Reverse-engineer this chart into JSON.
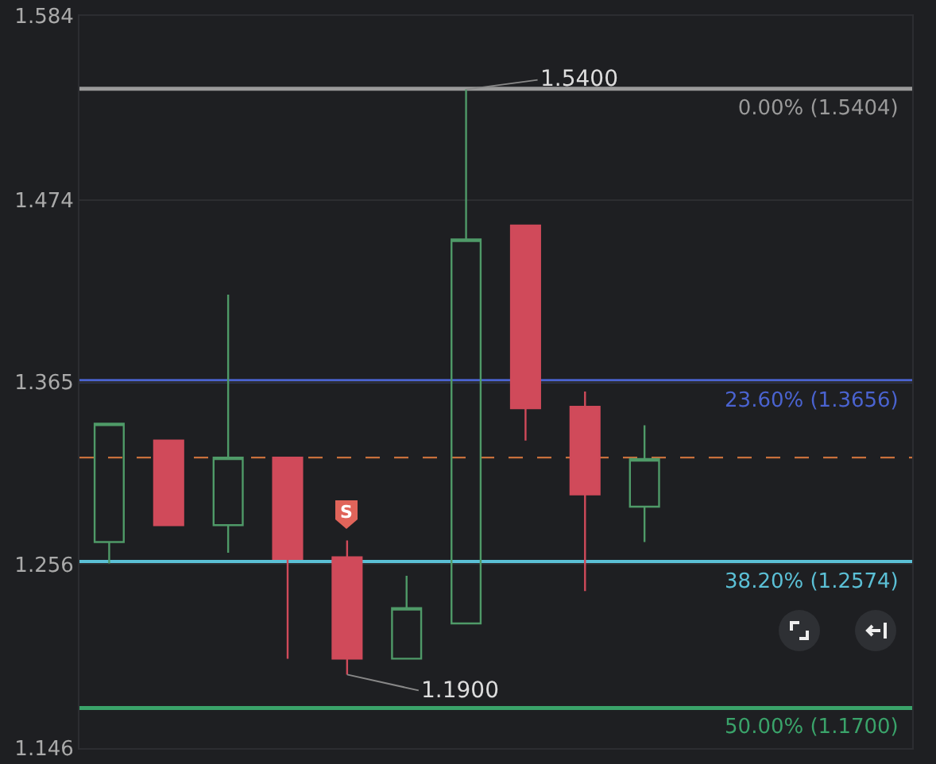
{
  "chart_data": {
    "type": "candlestick",
    "categories": [
      null,
      null,
      null,
      null,
      null,
      null,
      null,
      null,
      null,
      null
    ],
    "ohlc": [
      [
        1.2693,
        1.3401,
        1.2564,
        1.3401
      ],
      [
        1.33,
        1.33,
        1.2794,
        1.2794
      ],
      [
        1.2794,
        1.4173,
        1.2629,
        1.3198
      ],
      [
        1.3198,
        1.3198,
        1.1995,
        1.2592
      ],
      [
        1.2601,
        1.2702,
        1.19,
        1.1995
      ],
      [
        1.1995,
        1.2491,
        1.1995,
        1.2298
      ],
      [
        1.2206,
        1.54,
        1.2206,
        1.4503
      ],
      [
        1.4586,
        1.4586,
        1.33,
        1.3493
      ],
      [
        1.3502,
        1.3593,
        1.2399,
        1.2978
      ],
      [
        1.2904,
        1.3391,
        1.2693,
        1.3189
      ]
    ],
    "colors": [
      "#4f9a68",
      "#d04a5a",
      "#4f9a68",
      "#d04a5a",
      "#d04a5a",
      "#4f9a68",
      "#4f9a68",
      "#d04a5a",
      "#d04a5a",
      "#4f9a68"
    ],
    "ylim": [
      1.146,
      1.584
    ],
    "yticks": [
      1.584,
      1.474,
      1.365,
      1.256,
      1.146
    ],
    "tick_labels": "y",
    "grid": true,
    "ref_lines": [
      {
        "axis": "y",
        "value": 1.5404,
        "label": "0.00% (1.5404)",
        "color": "#9a9a9a"
      },
      {
        "axis": "y",
        "value": 1.3656,
        "label": "23.60% (1.3656)",
        "color": "#4a63d0"
      },
      {
        "axis": "y",
        "value": 1.2574,
        "label": "38.20% (1.2574)",
        "color": "#5bc0d6"
      },
      {
        "axis": "y",
        "value": 1.17,
        "label": "50.00% (1.1700)",
        "color": "#3aa36a"
      },
      {
        "axis": "y",
        "value": 1.3198,
        "color": "#c8703c",
        "line_style": "dashed"
      }
    ],
    "annotations": [
      {
        "text": "1.5400",
        "y": 1.54
      },
      "1.1900",
      "S"
    ]
  }
}
